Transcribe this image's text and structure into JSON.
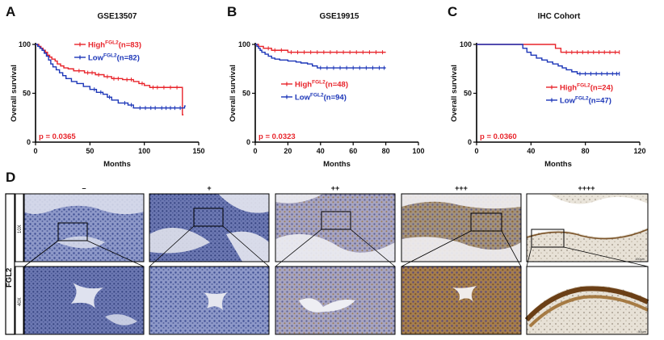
{
  "panels": {
    "A": "A",
    "B": "B",
    "C": "C",
    "D": "D"
  },
  "chart_data": [
    {
      "type": "line",
      "title": "GSE13507",
      "xlabel": "Months",
      "ylabel": "Overall survival",
      "xlim": [
        0,
        150
      ],
      "ylim": [
        0,
        100
      ],
      "xticks": [
        "0",
        "50",
        "100",
        "150"
      ],
      "yticks": [
        "0",
        "50",
        "100"
      ],
      "pvalue": "p = 0.0365",
      "legend_position": "top-right",
      "series": [
        {
          "name": "High",
          "sup": "FGL2",
          "n": "(n=83)",
          "color": "#e8242b",
          "steps": [
            [
              0,
              100
            ],
            [
              3,
              98
            ],
            [
              5,
              96
            ],
            [
              7,
              94
            ],
            [
              9,
              92
            ],
            [
              11,
              89
            ],
            [
              13,
              87
            ],
            [
              15,
              85
            ],
            [
              18,
              83
            ],
            [
              20,
              80
            ],
            [
              23,
              78
            ],
            [
              26,
              76
            ],
            [
              30,
              75
            ],
            [
              35,
              73
            ],
            [
              45,
              71
            ],
            [
              55,
              69
            ],
            [
              63,
              67
            ],
            [
              70,
              65
            ],
            [
              80,
              64
            ],
            [
              90,
              62
            ],
            [
              95,
              60
            ],
            [
              100,
              58
            ],
            [
              105,
              56
            ],
            [
              134,
              56
            ],
            [
              135,
              28
            ],
            [
              136,
              28
            ]
          ],
          "censors": [
            40,
            48,
            52,
            58,
            66,
            72,
            76,
            84,
            88,
            98,
            108,
            112,
            118,
            124,
            130
          ]
        },
        {
          "name": "Low",
          "sup": "FGL2",
          "n": "(n=82)",
          "color": "#1c36b8",
          "steps": [
            [
              0,
              100
            ],
            [
              2,
              98
            ],
            [
              4,
              96
            ],
            [
              6,
              94
            ],
            [
              8,
              91
            ],
            [
              10,
              88
            ],
            [
              12,
              84
            ],
            [
              14,
              80
            ],
            [
              16,
              77
            ],
            [
              19,
              74
            ],
            [
              22,
              71
            ],
            [
              25,
              68
            ],
            [
              28,
              65
            ],
            [
              33,
              62
            ],
            [
              38,
              60
            ],
            [
              44,
              57
            ],
            [
              50,
              54
            ],
            [
              56,
              51
            ],
            [
              62,
              49
            ],
            [
              66,
              46
            ],
            [
              70,
              43
            ],
            [
              76,
              40
            ],
            [
              85,
              38
            ],
            [
              90,
              35
            ],
            [
              136,
              35
            ],
            [
              137,
              37
            ],
            [
              138,
              37
            ]
          ],
          "censors": [
            54,
            60,
            68,
            82,
            88,
            96,
            101,
            106,
            110,
            116,
            120,
            124,
            128,
            133
          ]
        }
      ]
    },
    {
      "type": "line",
      "title": "GSE19915",
      "xlabel": "Months",
      "ylabel": "Overall survival",
      "xlim": [
        0,
        100
      ],
      "ylim": [
        0,
        100
      ],
      "xticks": [
        "0",
        "20",
        "40",
        "60",
        "80",
        "100"
      ],
      "yticks": [
        "0",
        "50",
        "100"
      ],
      "pvalue": "p = 0.0323",
      "legend_position": "center-right",
      "series": [
        {
          "name": "High",
          "sup": "FGL2",
          "n": "(n=48)",
          "color": "#e8242b",
          "steps": [
            [
              0,
              100
            ],
            [
              2,
              98
            ],
            [
              5,
              96
            ],
            [
              10,
              94
            ],
            [
              20,
              92
            ],
            [
              80,
              92
            ]
          ],
          "censors": [
            8,
            12,
            16,
            22,
            26,
            30,
            34,
            38,
            42,
            46,
            50,
            54,
            58,
            62,
            66,
            70,
            74,
            78
          ]
        },
        {
          "name": "Low",
          "sup": "FGL2",
          "n": "(n=94)",
          "color": "#1c36b8",
          "steps": [
            [
              0,
              100
            ],
            [
              1,
              98
            ],
            [
              2,
              96
            ],
            [
              3,
              94
            ],
            [
              4,
              92
            ],
            [
              6,
              90
            ],
            [
              8,
              88
            ],
            [
              10,
              86
            ],
            [
              12,
              85
            ],
            [
              15,
              84
            ],
            [
              20,
              83
            ],
            [
              25,
              82
            ],
            [
              28,
              81
            ],
            [
              32,
              80
            ],
            [
              35,
              78
            ],
            [
              38,
              76
            ],
            [
              80,
              76
            ]
          ],
          "censors": [
            40,
            44,
            48,
            52,
            56,
            60,
            64,
            68,
            72,
            76,
            79
          ]
        }
      ]
    },
    {
      "type": "line",
      "title": "IHC Cohort",
      "xlabel": "Months",
      "ylabel": "Overall survival",
      "xlim": [
        0,
        120
      ],
      "ylim": [
        0,
        100
      ],
      "xticks": [
        "0",
        "40",
        "80",
        "120"
      ],
      "yticks": [
        "0",
        "50",
        "100"
      ],
      "pvalue": "p = 0.0360",
      "legend_position": "center-right",
      "series": [
        {
          "name": "High",
          "sup": "FGL2",
          "n": "(n=24)",
          "color": "#e8242b",
          "steps": [
            [
              0,
              100
            ],
            [
              56,
              100
            ],
            [
              58,
              96
            ],
            [
              62,
              92
            ],
            [
              105,
              92
            ]
          ],
          "censors": [
            66,
            70,
            74,
            78,
            82,
            86,
            90,
            94,
            98,
            102,
            105
          ]
        },
        {
          "name": "Low",
          "sup": "FGL2",
          "n": "(n=47)",
          "color": "#1c36b8",
          "steps": [
            [
              0,
              100
            ],
            [
              32,
              100
            ],
            [
              34,
              96
            ],
            [
              37,
              92
            ],
            [
              40,
              89
            ],
            [
              44,
              86
            ],
            [
              48,
              84
            ],
            [
              52,
              82
            ],
            [
              56,
              80
            ],
            [
              60,
              78
            ],
            [
              63,
              76
            ],
            [
              66,
              74
            ],
            [
              70,
              72
            ],
            [
              74,
              70
            ],
            [
              105,
              70
            ]
          ],
          "censors": [
            76,
            80,
            84,
            88,
            92,
            96,
            100,
            103,
            105
          ]
        }
      ]
    }
  ],
  "ihc": {
    "row_label": "FGL2",
    "mag_top": "10X",
    "mag_bottom": "40X",
    "scale_top": "100µm",
    "scale_bottom": "50µm",
    "columns": [
      "–",
      "+",
      "++",
      "+++",
      "++++"
    ],
    "colors": {
      "blue_dark": "#3f4f93",
      "blue_light": "#8d98c8",
      "brown": "#9b6a2c",
      "tissue_pale": "#d9d2c4",
      "background": "#ffffff"
    }
  }
}
